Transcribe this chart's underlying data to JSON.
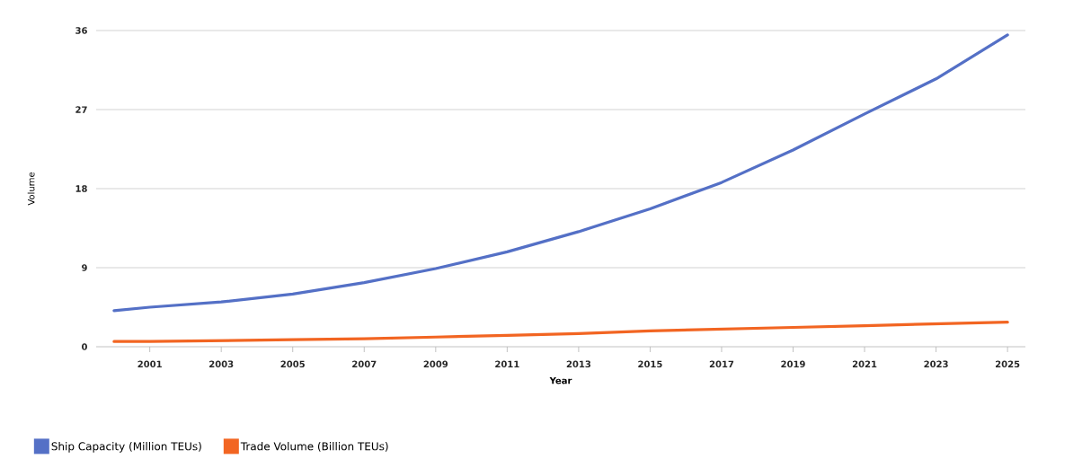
{
  "chart_data": {
    "type": "line",
    "xlabel": "Year",
    "ylabel": "Volume",
    "x": [
      2000,
      2001,
      2003,
      2005,
      2007,
      2009,
      2011,
      2013,
      2015,
      2017,
      2019,
      2021,
      2023,
      2025
    ],
    "series": [
      {
        "name": "Ship Capacity (Million TEUs)",
        "color": "#5470c6",
        "values": [
          4.1,
          4.5,
          5.1,
          6.0,
          7.3,
          8.9,
          10.8,
          13.1,
          15.7,
          18.7,
          22.4,
          26.5,
          30.5,
          35.5
        ]
      },
      {
        "name": "Trade Volume (Billion TEUs)",
        "color": "#f26522",
        "values": [
          0.6,
          0.6,
          0.7,
          0.8,
          0.9,
          1.1,
          1.3,
          1.5,
          1.8,
          2.0,
          2.2,
          2.4,
          2.6,
          2.8
        ]
      }
    ],
    "xlim": [
      1999.5,
      2025.5
    ],
    "ylim": [
      0,
      36
    ],
    "xticks": [
      2001,
      2003,
      2005,
      2007,
      2009,
      2011,
      2013,
      2015,
      2017,
      2019,
      2021,
      2023,
      2025
    ],
    "yticks": [
      0,
      9,
      18,
      27,
      36
    ],
    "grid": "y",
    "legend": "bottom left",
    "marker": "none",
    "line_style": "solid"
  }
}
